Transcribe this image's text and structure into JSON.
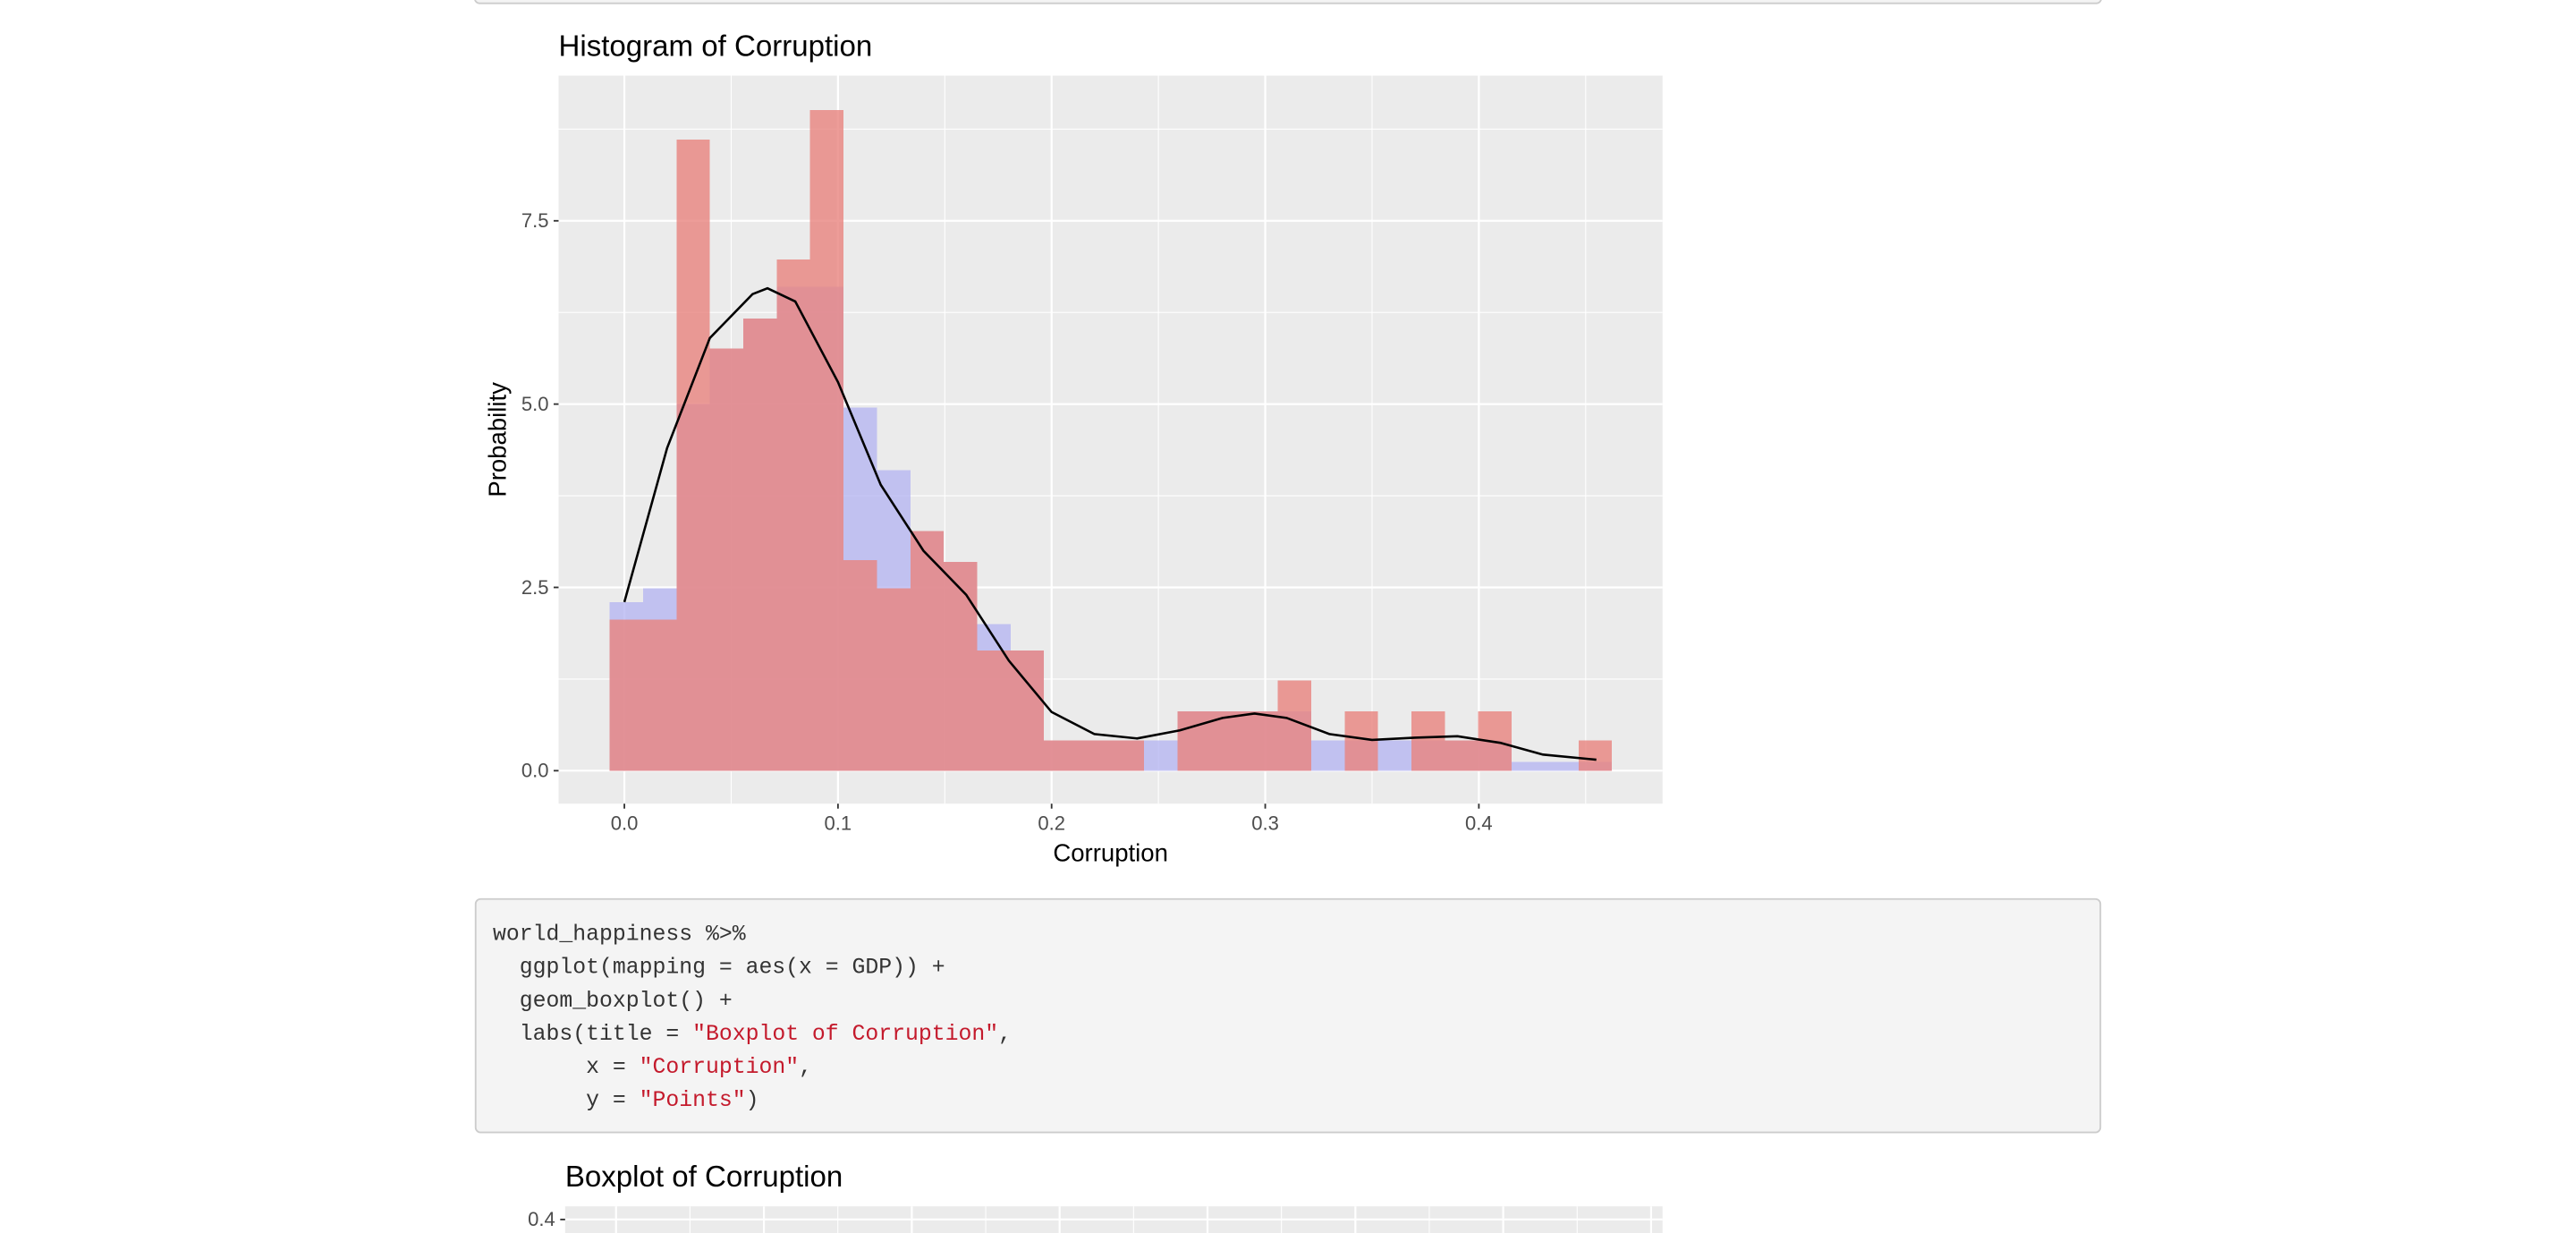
{
  "chart_data": [
    {
      "type": "histogram",
      "title": "Histogram of Corruption",
      "x_label": "Corruption",
      "y_label": "Probability",
      "bins": [
        -0.0069,
        0.0087,
        0.0244,
        0.04,
        0.0557,
        0.0713,
        0.0869,
        0.1026,
        0.1182,
        0.1339,
        0.1495,
        0.1651,
        0.1808,
        0.1964,
        0.2121,
        0.2277,
        0.2433,
        0.259,
        0.2746,
        0.2903,
        0.3059,
        0.3215,
        0.3372,
        0.3528,
        0.3685,
        0.3841,
        0.3997,
        0.4154,
        0.431,
        0.4467,
        0.4623
      ],
      "series": [
        {
          "color": "#e8837e",
          "values": [
            2.06,
            2.06,
            8.61,
            5.76,
            6.17,
            6.97,
            9.01,
            2.87,
            2.49,
            3.27,
            2.85,
            1.64,
            1.64,
            0.41,
            0.41,
            0.41,
            0,
            0.81,
            0.81,
            0.81,
            1.23,
            0,
            0.81,
            0,
            0.81,
            0.41,
            0.81,
            0,
            0,
            0.41
          ]
        },
        {
          "color": "#b3b3f2",
          "values": [
            2.3,
            2.49,
            5.0,
            5.76,
            6.17,
            6.6,
            6.6,
            4.95,
            4.1,
            3.27,
            2.85,
            2.0,
            1.64,
            0.41,
            0.41,
            0.41,
            0.41,
            0.81,
            0.81,
            0.81,
            0.81,
            0.41,
            0.41,
            0.41,
            0.41,
            0.41,
            0.41,
            0.12,
            0.12,
            0.12
          ]
        }
      ],
      "density": {
        "color": "#000000",
        "x": [
          0.0,
          0.02,
          0.04,
          0.06,
          0.067,
          0.08,
          0.1,
          0.12,
          0.14,
          0.16,
          0.18,
          0.2,
          0.22,
          0.24,
          0.26,
          0.28,
          0.295,
          0.31,
          0.33,
          0.35,
          0.37,
          0.39,
          0.41,
          0.43,
          0.455
        ],
        "values": [
          2.3,
          4.4,
          5.9,
          6.5,
          6.58,
          6.4,
          5.3,
          3.9,
          3.0,
          2.4,
          1.5,
          0.8,
          0.5,
          0.44,
          0.55,
          0.72,
          0.78,
          0.72,
          0.5,
          0.42,
          0.45,
          0.47,
          0.38,
          0.22,
          0.15
        ]
      },
      "xlim": [
        -0.0308,
        0.486
      ],
      "ylim": [
        -0.45,
        9.48
      ],
      "xticks": [
        {
          "value": 0,
          "label": "0.0"
        },
        0.1,
        0.2,
        0.3,
        0.4
      ],
      "yticks": [
        {
          "value": 0,
          "label": "0.0"
        },
        2.5,
        {
          "value": 5,
          "label": "5.0"
        },
        7.5
      ],
      "grid": true
    },
    {
      "type": "box",
      "title": "Boxplot of Corruption",
      "yticks": [
        0.4
      ]
    }
  ],
  "code": [
    [
      "world_happiness %>%"
    ],
    [
      "  ggplot(mapping = aes(x = GDP)) +"
    ],
    [
      "  geom_boxplot() +"
    ],
    [
      "  labs(title = ",
      "\"Boxplot of Corruption\"",
      ","
    ],
    [
      "       x = ",
      "\"Corruption\"",
      ","
    ],
    [
      "       y = ",
      "\"Points\"",
      ")"
    ]
  ]
}
